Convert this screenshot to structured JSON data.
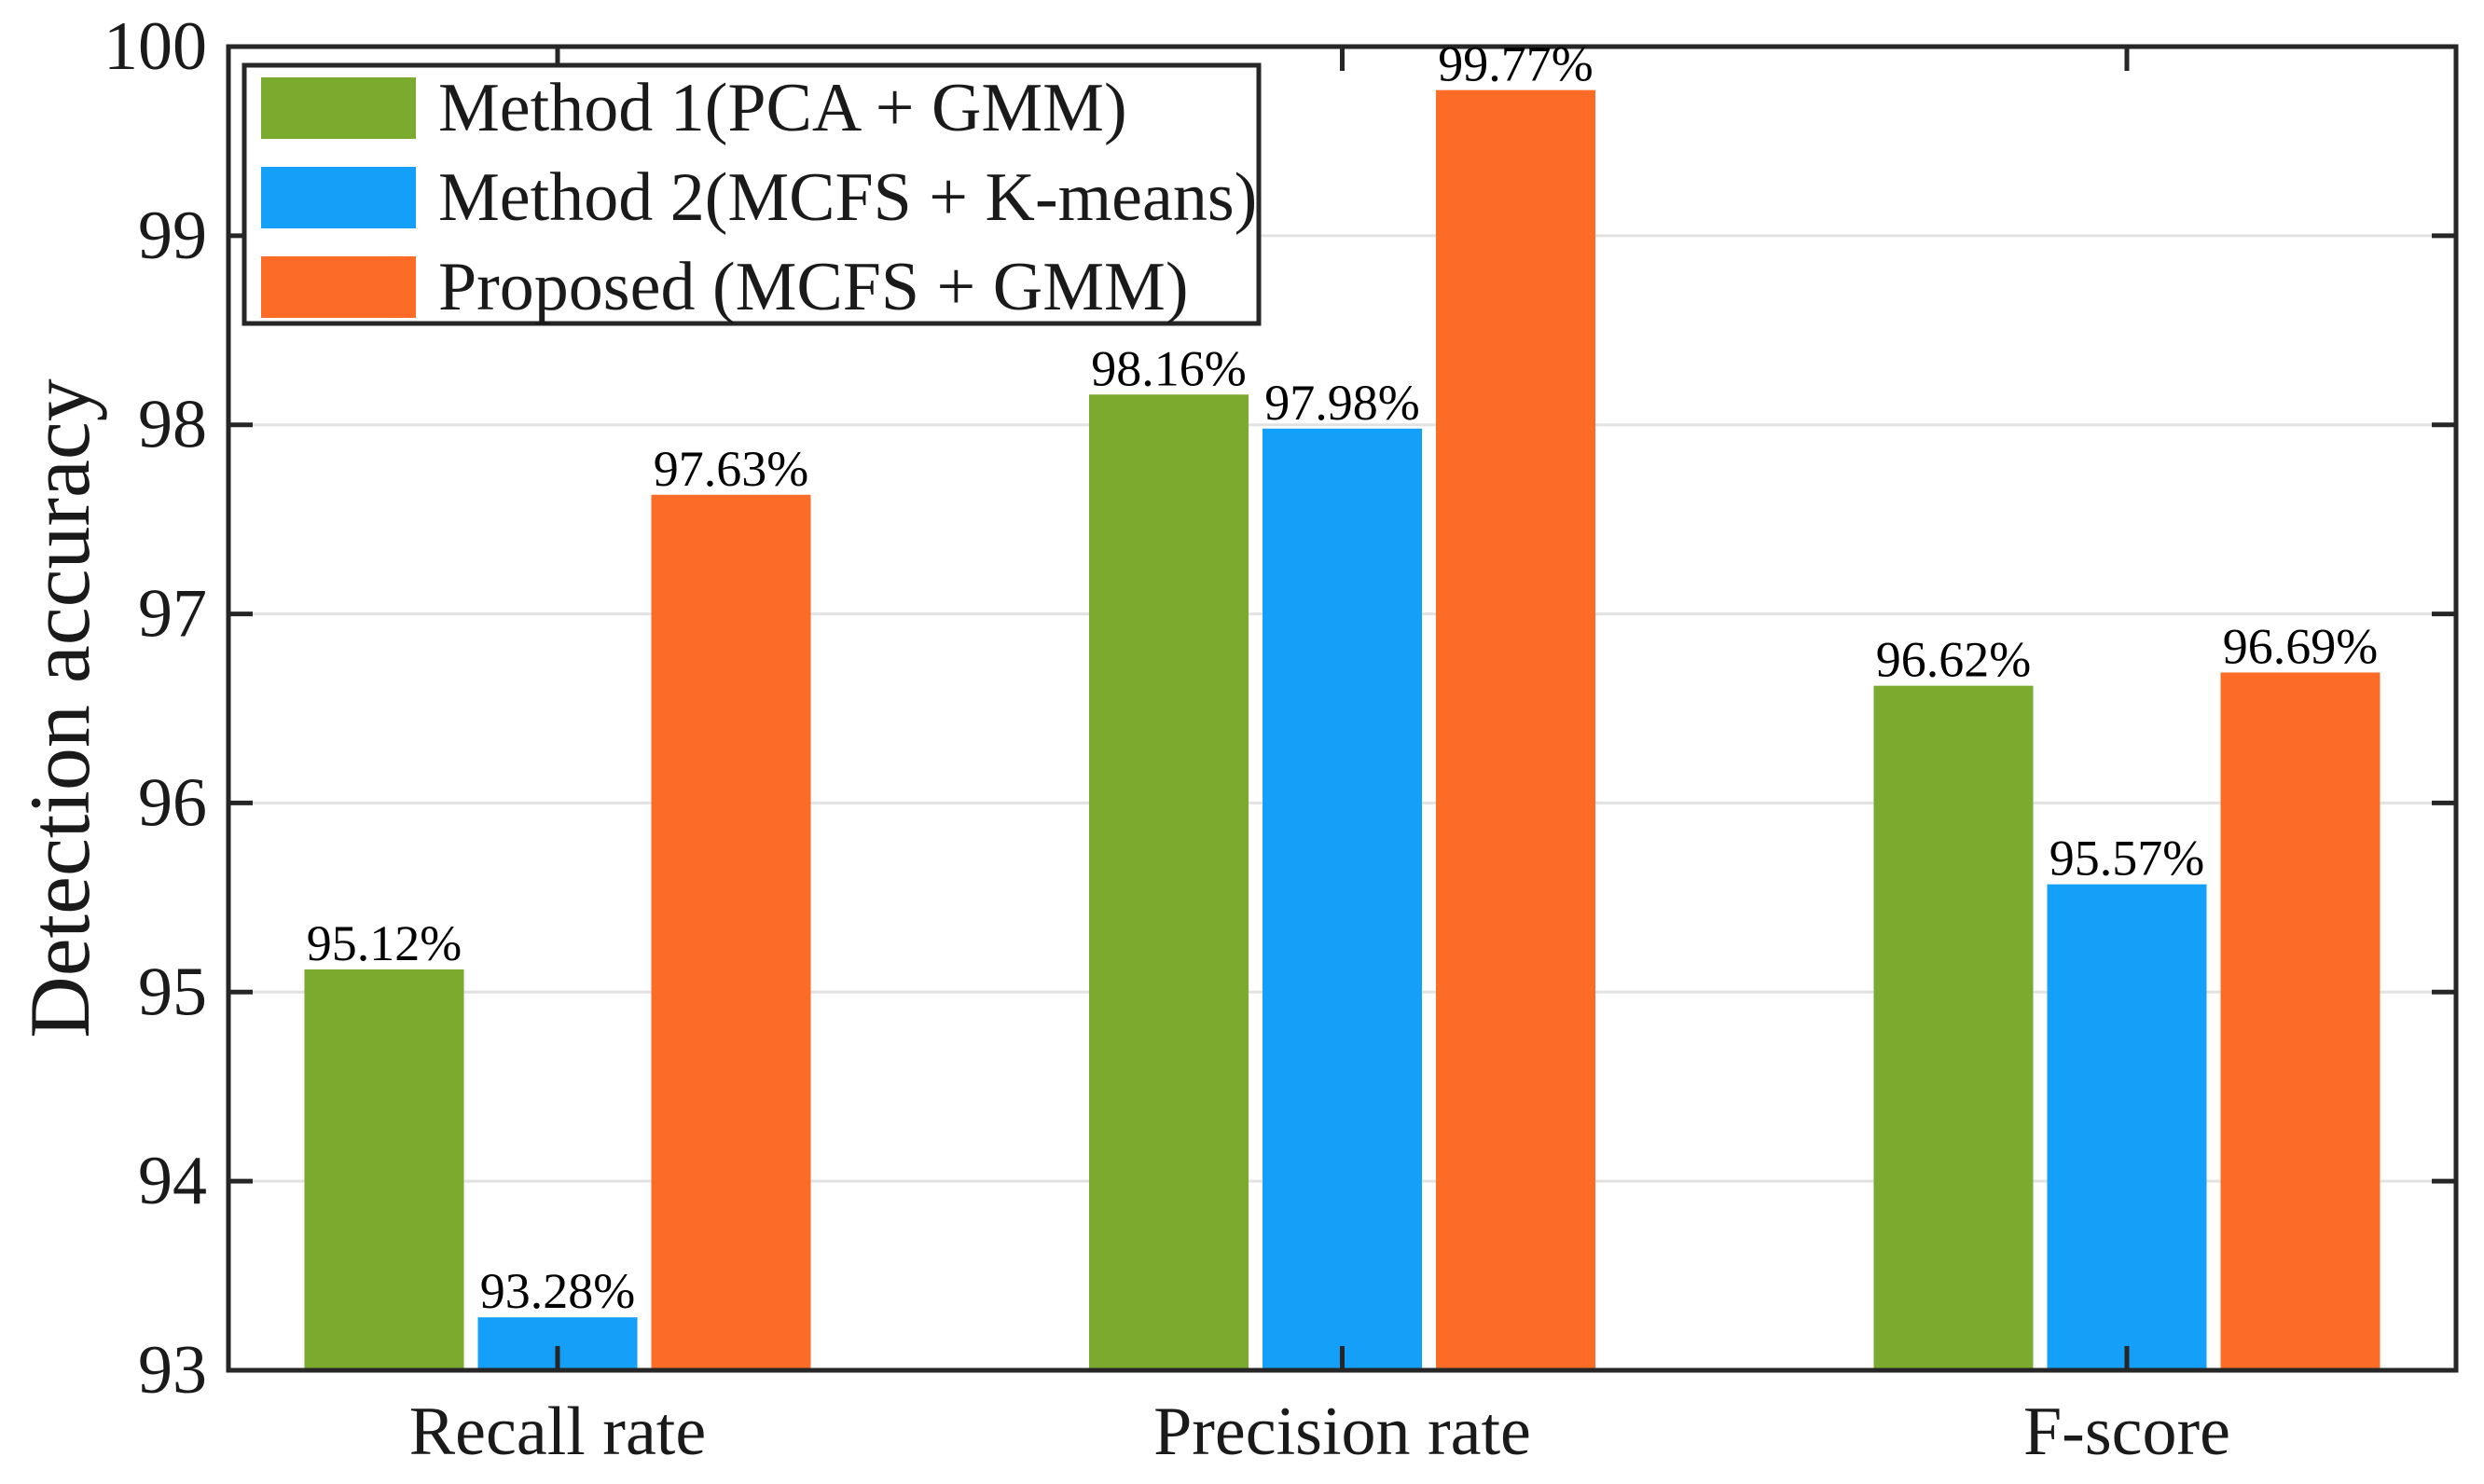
{
  "chart_data": {
    "type": "bar",
    "title": "",
    "xlabel": "",
    "ylabel": "Detection accuracy",
    "ylim": [
      93,
      100
    ],
    "yticks": [
      93,
      94,
      95,
      96,
      97,
      98,
      99,
      100
    ],
    "grid": true,
    "legend_position": "top-left",
    "categories": [
      "Recall rate",
      "Precision rate",
      "F-score"
    ],
    "series": [
      {
        "name": "Method 1(PCA + GMM)",
        "color": "#7AAB2F",
        "values": [
          95.12,
          98.16,
          96.62
        ],
        "labels": [
          "95.12%",
          "98.16%",
          "96.62%"
        ]
      },
      {
        "name": "Method 2(MCFS + K-means)",
        "color": "#14A0F8",
        "values": [
          93.28,
          97.98,
          95.57
        ],
        "labels": [
          "93.28%",
          "97.98%",
          "95.57%"
        ]
      },
      {
        "name": "Proposed (MCFS + GMM)",
        "color": "#FC6C26",
        "values": [
          97.63,
          99.77,
          96.69
        ],
        "labels": [
          "97.63%",
          "99.77%",
          "96.69%"
        ]
      }
    ],
    "colors": {
      "axis": "#262626",
      "grid": "#E2E2E2",
      "text": "#1A1A1A",
      "background": "#FFFFFF"
    }
  }
}
